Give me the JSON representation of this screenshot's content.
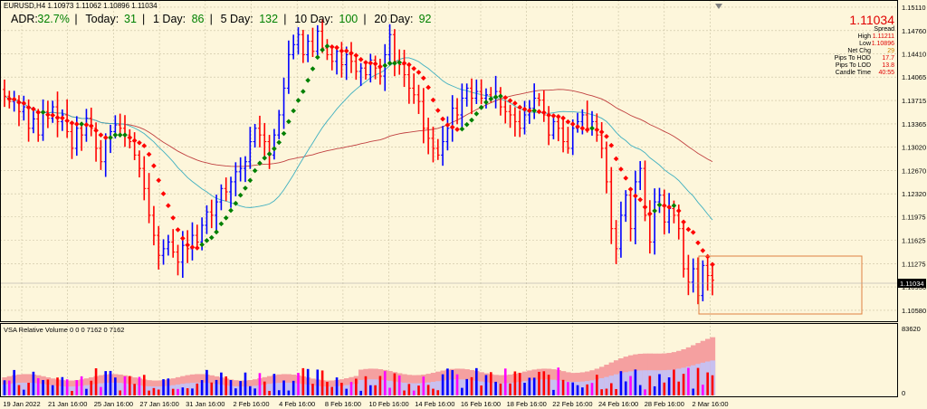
{
  "symbol_line": "EURUSD,H4  1.10973 1.11062 1.10896 1.11034",
  "adr": [
    {
      "label": "ADR:",
      "value": "32.7%"
    },
    {
      "label": "Today:",
      "value": "31"
    },
    {
      "label": "1 Day:",
      "value": "86"
    },
    {
      "label": "5 Day:",
      "value": "132"
    },
    {
      "label": "10 Day:",
      "value": "100"
    },
    {
      "label": "20 Day:",
      "value": "92"
    }
  ],
  "info_panel": {
    "price": "1.11034",
    "rows": [
      {
        "label": "Spread",
        "value": ""
      },
      {
        "label": "High",
        "value": "1.11211"
      },
      {
        "label": "Low",
        "value": "1.10896"
      },
      {
        "label": "Net Chg",
        "value": "29"
      },
      {
        "label": "Pips To HOD",
        "value": "17.7"
      },
      {
        "label": "Pips To LOD",
        "value": "13.8"
      },
      {
        "label": "Candle Time",
        "value": "40:55"
      }
    ]
  },
  "current_price_label": "1.11034",
  "vsa_title": "VSA Relative Volume 0 0 0 7162 0 7162",
  "vsa_max_label": "83620",
  "vsa_zero_label": "0",
  "colors": {
    "bull": "#0000ff",
    "bear": "#ff0000",
    "ma_fast_up": "#008000",
    "ma_fast_down": "#ff0000",
    "ma_slow": "#c04040",
    "ma_mid": "#40b0c0",
    "grid": "#c8c0a0",
    "box": "#e08040",
    "adr_value": "#008000"
  },
  "chart_data": {
    "type": "candlestick",
    "ylim": [
      1.1043,
      1.1519
    ],
    "yticks": [
      "1.15110",
      "1.14760",
      "1.14410",
      "1.14065",
      "1.13715",
      "1.13365",
      "1.13020",
      "1.12670",
      "1.12320",
      "1.11975",
      "1.11625",
      "1.11275",
      "1.10930",
      "1.10580"
    ],
    "xticks": [
      "19 Jan 2022",
      "21 Jan 16:00",
      "25 Jan 16:00",
      "27 Jan 16:00",
      "31 Jan 16:00",
      "2 Feb 16:00",
      "4 Feb 16:00",
      "8 Feb 16:00",
      "10 Feb 16:00",
      "14 Feb 16:00",
      "16 Feb 16:00",
      "18 Feb 16:00",
      "22 Feb 16:00",
      "24 Feb 16:00",
      "28 Feb 16:00",
      "2 Mar 16:00"
    ],
    "close": [
      1.1378,
      1.137,
      1.1372,
      1.1355,
      1.1362,
      1.133,
      1.1344,
      1.132,
      1.1355,
      1.1345,
      1.1362,
      1.134,
      1.135,
      1.1325,
      1.13,
      1.133,
      1.132,
      1.1345,
      1.133,
      1.13,
      1.128,
      1.1315,
      1.1325,
      1.1335,
      1.133,
      1.132,
      1.131,
      1.129,
      1.127,
      1.124,
      1.12,
      1.117,
      1.114,
      1.115,
      1.116,
      1.1145,
      1.113,
      1.1155,
      1.115,
      1.117,
      1.116,
      1.1185,
      1.1205,
      1.12,
      1.122,
      1.124,
      1.1235,
      1.125,
      1.1265,
      1.127,
      1.128,
      1.131,
      1.133,
      1.132,
      1.131,
      1.129,
      1.132,
      1.135,
      1.139,
      1.144,
      1.1455,
      1.147,
      1.144,
      1.146,
      1.1445,
      1.1475,
      1.145,
      1.144,
      1.143,
      1.1445,
      1.1425,
      1.144,
      1.143,
      1.1415,
      1.142,
      1.141,
      1.1432,
      1.142,
      1.1408,
      1.144,
      1.147,
      1.143,
      1.1425,
      1.141,
      1.139,
      1.138,
      1.137,
      1.133,
      1.1315,
      1.13,
      1.129,
      1.131,
      1.133,
      1.136,
      1.135,
      1.1375,
      1.139,
      1.1375,
      1.1385,
      1.1375,
      1.138,
      1.1375,
      1.1385,
      1.1362,
      1.1355,
      1.135,
      1.134,
      1.133,
      1.135,
      1.136,
      1.1375,
      1.1372,
      1.135,
      1.132,
      1.134,
      1.133,
      1.131,
      1.13,
      1.133,
      1.134,
      1.135,
      1.133,
      1.134,
      1.132,
      1.13,
      1.125,
      1.118,
      1.115,
      1.12,
      1.123,
      1.118,
      1.125,
      1.127,
      1.12,
      1.116,
      1.122,
      1.123,
      1.119,
      1.121,
      1.12,
      1.118,
      1.112,
      1.11,
      1.112,
      1.108,
      1.1125,
      1.111,
      1.1103
    ]
  }
}
